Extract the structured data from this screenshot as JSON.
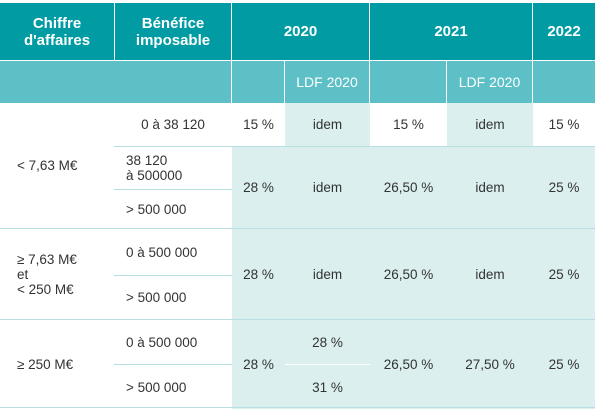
{
  "header": {
    "col_ca": [
      "Chiffre",
      "d'affaires"
    ],
    "col_benefice": [
      "Bénéfice",
      "imposable"
    ],
    "year_2020": "2020",
    "year_2021": "2021",
    "year_2022": "2022",
    "ldf_2020_a": "LDF 2020",
    "ldf_2020_b": "LDF 2020"
  },
  "group1": {
    "ca": "< 7,63 M€",
    "row1": {
      "benefice": "0 à 38 120",
      "y2020": "15 %",
      "ldf2020": "idem",
      "y2021": "15 %",
      "ldf2021": "idem",
      "y2022": "15 %"
    },
    "row2_benefice": [
      "38 120",
      "à 500000"
    ],
    "row3_benefice": "> 500 000",
    "merged": {
      "y2020": "28 %",
      "ldf2020": "idem",
      "y2021": "26,50 %",
      "ldf2021": "idem",
      "y2022": "25 %"
    }
  },
  "group2": {
    "ca": [
      "≥ 7,63 M€",
      "et",
      "< 250 M€"
    ],
    "row1_benefice": "0 à 500 000",
    "row2_benefice": "> 500 000",
    "merged": {
      "y2020": "28 %",
      "ldf2020": "idem",
      "y2021": "26,50 %",
      "ldf2021": "idem",
      "y2022": "25 %"
    }
  },
  "group3": {
    "ca": "≥ 250 M€",
    "row1_benefice": "0 à 500 000",
    "row2_benefice": "> 500 000",
    "y2020": "28 %",
    "ldf2020_row1": "28 %",
    "ldf2020_row2": "31 %",
    "y2021": "26,50 %",
    "ldf2021": "27,50 %",
    "y2022": "25 %"
  }
}
